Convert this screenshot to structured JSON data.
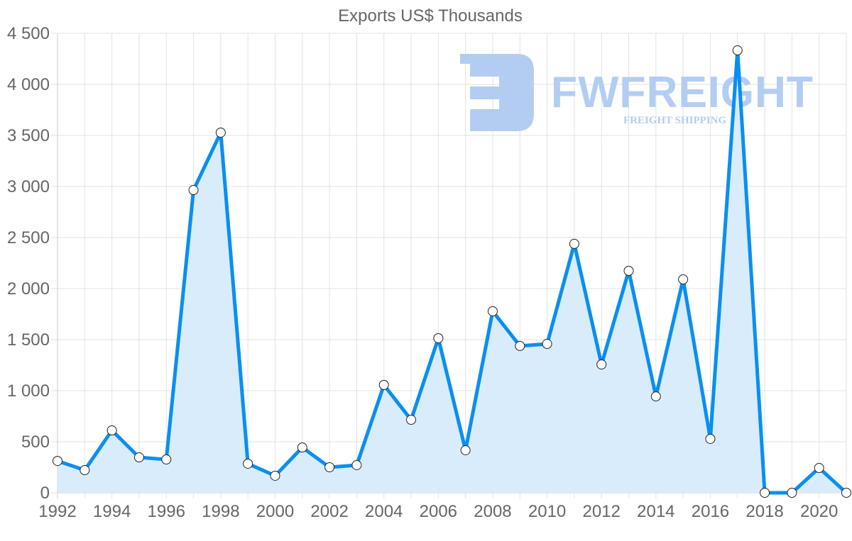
{
  "chart_data": {
    "type": "line",
    "title": "Exports US$ Thousands",
    "xlabel": "",
    "ylabel": "",
    "ylim": [
      0,
      4500
    ],
    "xlim": [
      1992,
      2021
    ],
    "grid": true,
    "legend": null,
    "fill": "area",
    "y_ticks": [
      "0",
      "500",
      "1 000",
      "1 500",
      "2 000",
      "2 500",
      "3 000",
      "3 500",
      "4 000",
      "4 500"
    ],
    "y_tick_values": [
      0,
      500,
      1000,
      1500,
      2000,
      2500,
      3000,
      3500,
      4000,
      4500
    ],
    "x_ticks": [
      "1992",
      "1994",
      "1996",
      "1998",
      "2000",
      "2002",
      "2004",
      "2006",
      "2008",
      "2010",
      "2012",
      "2014",
      "2016",
      "2018",
      "2020"
    ],
    "x": [
      1992,
      1993,
      1994,
      1995,
      1996,
      1997,
      1998,
      1999,
      2000,
      2001,
      2002,
      2003,
      2004,
      2005,
      2006,
      2007,
      2008,
      2009,
      2010,
      2011,
      2012,
      2013,
      2014,
      2015,
      2016,
      2017,
      2018,
      2019,
      2020,
      2021
    ],
    "series": [
      {
        "name": "Exports US$ Thousands",
        "values": [
          312,
          222,
          611,
          347,
          326,
          2965,
          3528,
          285,
          167,
          444,
          250,
          271,
          1056,
          715,
          1514,
          417,
          1778,
          1438,
          1458,
          2438,
          1257,
          2174,
          944,
          2090,
          528,
          4333,
          0,
          0,
          243,
          0
        ]
      }
    ],
    "colors": {
      "line": "#0a8ff0",
      "fill": "#d7ebfc",
      "grid": "#e2e2e2",
      "text": "#666666",
      "point_fill": "#ffffff",
      "point_stroke": "#222222"
    }
  },
  "watermark": {
    "brand": "FWFREIGHT",
    "tagline": "FREIGHT SHIPPING",
    "color": "#b3cdf2"
  }
}
